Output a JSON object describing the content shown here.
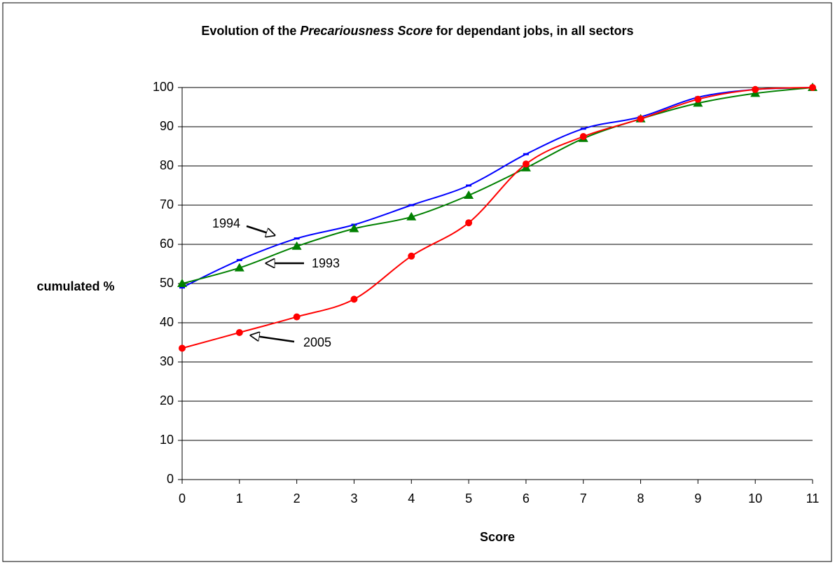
{
  "chart_data": {
    "type": "line",
    "title": [
      "Evolution of the ",
      "Precariousness Score",
      " for dependant jobs, in all sectors"
    ],
    "xlabel": "Score",
    "ylabel": "cumulated %",
    "x": [
      0,
      1,
      2,
      3,
      4,
      5,
      6,
      7,
      8,
      9,
      10,
      11
    ],
    "series": [
      {
        "name": "1994",
        "color": "#0000ff",
        "marker": "dash",
        "values": [
          49,
          56,
          61.5,
          65,
          70,
          75,
          83,
          89.5,
          92.5,
          97.5,
          99.5,
          100
        ]
      },
      {
        "name": "1993",
        "color": "#008000",
        "marker": "triangle",
        "values": [
          50,
          54,
          59.5,
          64,
          67,
          72.5,
          79.5,
          87,
          92,
          96,
          98.5,
          100
        ]
      },
      {
        "name": "2005",
        "color": "#ff0000",
        "marker": "circle",
        "values": [
          33.5,
          37.5,
          41.5,
          46,
          57,
          65.5,
          80.5,
          87.5,
          92,
          97,
          99.5,
          100
        ]
      }
    ],
    "xlim": [
      0,
      11
    ],
    "xticks": [
      0,
      1,
      2,
      3,
      4,
      5,
      6,
      7,
      8,
      9,
      10,
      11
    ],
    "ylim": [
      0,
      100
    ],
    "yticks": [
      0,
      10,
      20,
      30,
      40,
      50,
      60,
      70,
      80,
      90,
      100
    ],
    "grid": true
  }
}
